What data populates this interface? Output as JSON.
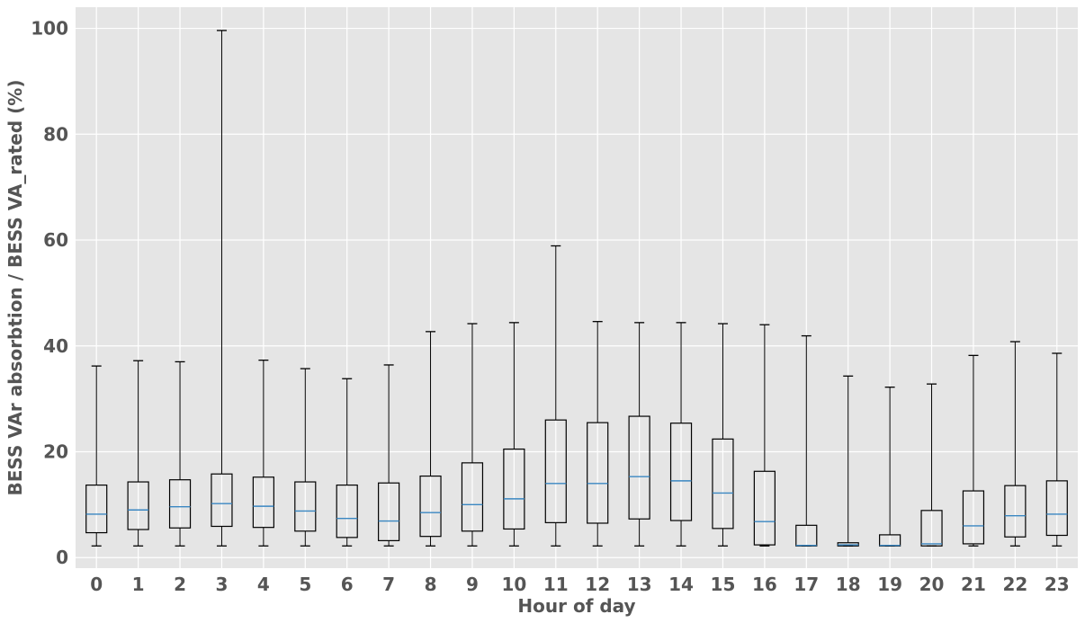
{
  "chart_data": {
    "type": "box",
    "title": "",
    "xlabel": "Hour of day",
    "ylabel": "BESS VAr absorbtion / BESS VA_rated (%)",
    "ylim": [
      -2,
      104
    ],
    "yticks": [
      0,
      20,
      40,
      60,
      80,
      100
    ],
    "grid": true,
    "colors": {
      "background": "#e5e5e5",
      "grid": "#ffffff",
      "box": "#000000",
      "median": "#3a87c2",
      "text": "#555555"
    },
    "categories": [
      "0",
      "1",
      "2",
      "3",
      "4",
      "5",
      "6",
      "7",
      "8",
      "9",
      "10",
      "11",
      "12",
      "13",
      "14",
      "15",
      "16",
      "17",
      "18",
      "19",
      "20",
      "21",
      "22",
      "23"
    ],
    "boxes": [
      {
        "whisker_low": 2.2,
        "q1": 4.7,
        "median": 8.2,
        "q3": 13.7,
        "whisker_high": 36.2
      },
      {
        "whisker_low": 2.2,
        "q1": 5.3,
        "median": 9.0,
        "q3": 14.3,
        "whisker_high": 37.2
      },
      {
        "whisker_low": 2.2,
        "q1": 5.6,
        "median": 9.6,
        "q3": 14.7,
        "whisker_high": 37.0
      },
      {
        "whisker_low": 2.2,
        "q1": 5.9,
        "median": 10.2,
        "q3": 15.8,
        "whisker_high": 99.6
      },
      {
        "whisker_low": 2.2,
        "q1": 5.7,
        "median": 9.7,
        "q3": 15.2,
        "whisker_high": 37.3
      },
      {
        "whisker_low": 2.2,
        "q1": 5.0,
        "median": 8.8,
        "q3": 14.3,
        "whisker_high": 35.7
      },
      {
        "whisker_low": 2.2,
        "q1": 3.8,
        "median": 7.4,
        "q3": 13.7,
        "whisker_high": 33.8
      },
      {
        "whisker_low": 2.2,
        "q1": 3.2,
        "median": 6.9,
        "q3": 14.1,
        "whisker_high": 36.4
      },
      {
        "whisker_low": 2.2,
        "q1": 4.0,
        "median": 8.5,
        "q3": 15.4,
        "whisker_high": 42.7
      },
      {
        "whisker_low": 2.2,
        "q1": 5.0,
        "median": 10.0,
        "q3": 17.9,
        "whisker_high": 44.2
      },
      {
        "whisker_low": 2.2,
        "q1": 5.4,
        "median": 11.1,
        "q3": 20.5,
        "whisker_high": 44.4
      },
      {
        "whisker_low": 2.2,
        "q1": 6.6,
        "median": 14.0,
        "q3": 26.0,
        "whisker_high": 58.9
      },
      {
        "whisker_low": 2.2,
        "q1": 6.5,
        "median": 14.0,
        "q3": 25.5,
        "whisker_high": 44.6
      },
      {
        "whisker_low": 2.2,
        "q1": 7.3,
        "median": 15.3,
        "q3": 26.7,
        "whisker_high": 44.4
      },
      {
        "whisker_low": 2.2,
        "q1": 7.0,
        "median": 14.5,
        "q3": 25.4,
        "whisker_high": 44.4
      },
      {
        "whisker_low": 2.2,
        "q1": 5.5,
        "median": 12.2,
        "q3": 22.4,
        "whisker_high": 44.2
      },
      {
        "whisker_low": 2.2,
        "q1": 2.4,
        "median": 6.8,
        "q3": 16.3,
        "whisker_high": 44.0
      },
      {
        "whisker_low": 2.2,
        "q1": 2.2,
        "median": 2.3,
        "q3": 6.1,
        "whisker_high": 41.9
      },
      {
        "whisker_low": 2.2,
        "q1": 2.2,
        "median": 2.4,
        "q3": 2.8,
        "whisker_high": 34.3
      },
      {
        "whisker_low": 2.2,
        "q1": 2.2,
        "median": 2.3,
        "q3": 4.3,
        "whisker_high": 32.2
      },
      {
        "whisker_low": 2.2,
        "q1": 2.2,
        "median": 2.6,
        "q3": 8.9,
        "whisker_high": 32.8
      },
      {
        "whisker_low": 2.2,
        "q1": 2.6,
        "median": 6.0,
        "q3": 12.6,
        "whisker_high": 38.2
      },
      {
        "whisker_low": 2.2,
        "q1": 3.9,
        "median": 7.9,
        "q3": 13.6,
        "whisker_high": 40.8
      },
      {
        "whisker_low": 2.2,
        "q1": 4.2,
        "median": 8.2,
        "q3": 14.5,
        "whisker_high": 38.6
      }
    ]
  }
}
